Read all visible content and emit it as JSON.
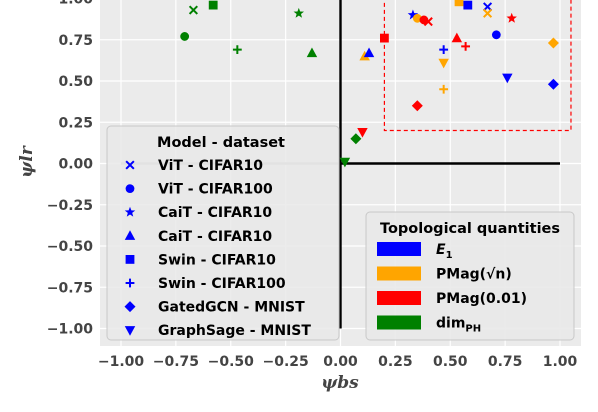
{
  "chart_data": {
    "type": "scatter",
    "xlabel": "ψbs",
    "ylabel": "ψlr",
    "xlim": [
      -1.1,
      1.1
    ],
    "ylim": [
      -1.1,
      1.05
    ],
    "xticks": [
      "−1.00",
      "−0.75",
      "−0.50",
      "−0.25",
      "0.00",
      "0.25",
      "0.50",
      "0.75",
      "1.00"
    ],
    "yticks": [
      "1.00",
      "0.75",
      "0.50",
      "0.25",
      "0.00",
      "−0.25",
      "−0.50",
      "−0.75",
      "−1.00"
    ],
    "xtick_values": [
      -1,
      -0.75,
      -0.5,
      -0.25,
      0,
      0.25,
      0.5,
      0.75,
      1
    ],
    "ytick_values": [
      1,
      0.75,
      0.5,
      0.25,
      0,
      -0.25,
      -0.5,
      -0.75,
      -1
    ],
    "grid": true,
    "crosshair_lines": [
      {
        "orientation": "h",
        "y": 0,
        "x": [
          -1,
          0
        ],
        "color": "#bbbbbb"
      },
      {
        "orientation": "h",
        "y": 0,
        "x": [
          0,
          1
        ],
        "color": "#000000"
      },
      {
        "orientation": "v",
        "x": 0,
        "y": [
          -1,
          1.05
        ],
        "color": "#000000"
      }
    ],
    "highlight_box": {
      "x": [
        0.2,
        1.05
      ],
      "y": [
        0.2,
        1.05
      ],
      "color": "#ff0000",
      "style": "dashed"
    },
    "colors": {
      "E1": "#0000ff",
      "PMag_sqrt": "#ffa500",
      "PMag_001": "#ff0000",
      "dimPH": "#008000"
    },
    "points": [
      {
        "x": -0.67,
        "y": 0.93,
        "marker": "x",
        "color": "#008000"
      },
      {
        "x": -0.71,
        "y": 0.77,
        "marker": "circle",
        "color": "#008000"
      },
      {
        "x": -0.58,
        "y": 0.96,
        "marker": "square",
        "color": "#008000"
      },
      {
        "x": -0.47,
        "y": 0.69,
        "marker": "plus",
        "color": "#008000"
      },
      {
        "x": -0.19,
        "y": 0.91,
        "marker": "star",
        "color": "#008000"
      },
      {
        "x": -0.13,
        "y": 0.67,
        "marker": "triangle-up",
        "color": "#008000"
      },
      {
        "x": 0.07,
        "y": 0.15,
        "marker": "diamond",
        "color": "#008000"
      },
      {
        "x": 0.02,
        "y": 0.01,
        "marker": "triangle-down",
        "color": "#008000"
      },
      {
        "x": 0.1,
        "y": 0.19,
        "marker": "triangle-down",
        "color": "#ff0000"
      },
      {
        "x": 0.11,
        "y": 0.65,
        "marker": "triangle-up",
        "color": "#ffa500"
      },
      {
        "x": 0.13,
        "y": 0.67,
        "marker": "triangle-up",
        "color": "#0000ff"
      },
      {
        "x": 0.2,
        "y": 0.76,
        "marker": "square",
        "color": "#ff0000"
      },
      {
        "x": 0.33,
        "y": 0.9,
        "marker": "star",
        "color": "#0000ff"
      },
      {
        "x": 0.35,
        "y": 0.88,
        "marker": "circle",
        "color": "#ffa500"
      },
      {
        "x": 0.38,
        "y": 0.87,
        "marker": "circle",
        "color": "#ff0000"
      },
      {
        "x": 0.4,
        "y": 0.86,
        "marker": "x",
        "color": "#ff0000"
      },
      {
        "x": 0.35,
        "y": 0.35,
        "marker": "diamond",
        "color": "#ff0000"
      },
      {
        "x": 0.47,
        "y": 0.69,
        "marker": "plus",
        "color": "#0000ff"
      },
      {
        "x": 0.47,
        "y": 0.61,
        "marker": "triangle-down",
        "color": "#ffa500"
      },
      {
        "x": 0.47,
        "y": 0.45,
        "marker": "plus",
        "color": "#ffa500"
      },
      {
        "x": 0.53,
        "y": 0.76,
        "marker": "triangle-up",
        "color": "#ff0000"
      },
      {
        "x": 0.54,
        "y": 0.98,
        "marker": "square",
        "color": "#ffa500"
      },
      {
        "x": 0.58,
        "y": 0.96,
        "marker": "square",
        "color": "#0000ff"
      },
      {
        "x": 0.57,
        "y": 0.71,
        "marker": "plus",
        "color": "#ff0000"
      },
      {
        "x": 0.67,
        "y": 0.95,
        "marker": "x",
        "color": "#0000ff"
      },
      {
        "x": 0.67,
        "y": 0.91,
        "marker": "x",
        "color": "#ffa500"
      },
      {
        "x": 0.71,
        "y": 0.78,
        "marker": "circle",
        "color": "#0000ff"
      },
      {
        "x": 0.76,
        "y": 0.52,
        "marker": "triangle-down",
        "color": "#0000ff"
      },
      {
        "x": 0.78,
        "y": 0.88,
        "marker": "star",
        "color": "#ff0000"
      },
      {
        "x": 0.97,
        "y": 0.73,
        "marker": "diamond",
        "color": "#ffa500"
      },
      {
        "x": 0.97,
        "y": 0.48,
        "marker": "diamond",
        "color": "#0000ff"
      }
    ],
    "legend_models": {
      "title": "Model - dataset",
      "placement": "lower-left",
      "entries": [
        {
          "marker": "x",
          "label": "ViT - CIFAR10"
        },
        {
          "marker": "circle",
          "label": "ViT - CIFAR100"
        },
        {
          "marker": "star",
          "label": "CaiT - CIFAR10"
        },
        {
          "marker": "triangle-up",
          "label": "CaiT - CIFAR10"
        },
        {
          "marker": "square",
          "label": "Swin - CIFAR10"
        },
        {
          "marker": "plus",
          "label": "Swin - CIFAR100"
        },
        {
          "marker": "diamond",
          "label": "GatedGCN - MNIST"
        },
        {
          "marker": "triangle-down",
          "label": "GraphSage - MNIST"
        }
      ]
    },
    "legend_topo": {
      "title": "Topological quantities",
      "placement": "lower-right",
      "entries": [
        {
          "color": "#0000ff",
          "label": "E",
          "sub": "1"
        },
        {
          "color": "#ffa500",
          "label": "PMag(√n)"
        },
        {
          "color": "#ff0000",
          "label": "PMag(0.01)"
        },
        {
          "color": "#008000",
          "label": "dim",
          "sub": "PH"
        }
      ]
    }
  }
}
